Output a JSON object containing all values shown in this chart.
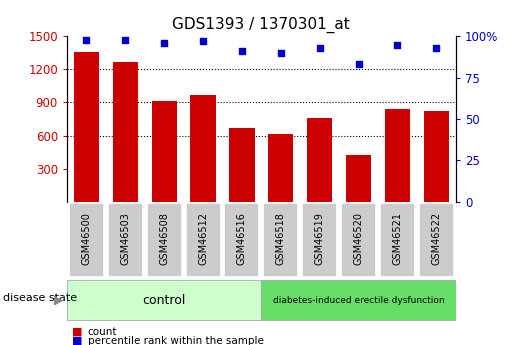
{
  "title": "GDS1393 / 1370301_at",
  "categories": [
    "GSM46500",
    "GSM46503",
    "GSM46508",
    "GSM46512",
    "GSM46516",
    "GSM46518",
    "GSM46519",
    "GSM46520",
    "GSM46521",
    "GSM46522"
  ],
  "bar_values": [
    1360,
    1270,
    910,
    970,
    665,
    615,
    755,
    420,
    840,
    820
  ],
  "percentile_values": [
    98,
    98,
    96,
    97,
    91,
    90,
    93,
    83,
    95,
    93
  ],
  "bar_color": "#cc0000",
  "dot_color": "#0000cc",
  "ylim_left": [
    0,
    1500
  ],
  "ylim_right": [
    0,
    100
  ],
  "yticks_left": [
    300,
    600,
    900,
    1200,
    1500
  ],
  "yticks_right": [
    0,
    25,
    50,
    75,
    100
  ],
  "yticklabels_right": [
    "0",
    "25",
    "50",
    "75",
    "100%"
  ],
  "grid_lines": [
    600,
    900,
    1200
  ],
  "control_indices": [
    0,
    1,
    2,
    3,
    4
  ],
  "disease_indices": [
    5,
    6,
    7,
    8,
    9
  ],
  "control_label": "control",
  "disease_label": "diabetes-induced erectile dysfunction",
  "disease_state_label": "disease state",
  "control_color": "#ccffcc",
  "disease_color": "#66dd66",
  "tick_bg_color": "#cccccc",
  "legend_bar_label": "count",
  "legend_dot_label": "percentile rank within the sample"
}
